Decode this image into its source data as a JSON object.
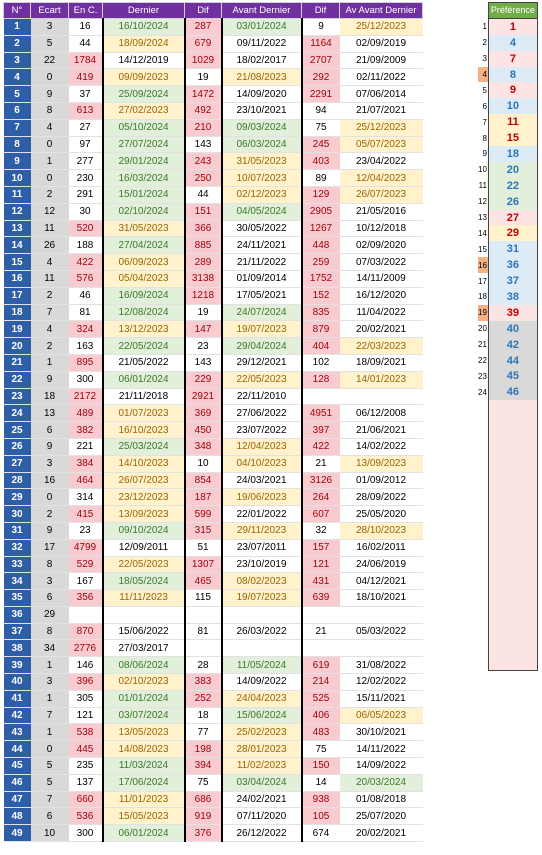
{
  "headers": [
    "N°",
    "Ecart",
    "En C.",
    "Dernier",
    "Dif",
    "Avant Dernier",
    "Dif",
    "Av Avant Dernier"
  ],
  "rows": [
    [
      "1",
      "3",
      "16",
      "16/10/2024",
      "287",
      "03/01/2024",
      "9",
      "25/12/2023"
    ],
    [
      "2",
      "5",
      "44",
      "18/09/2024",
      "679",
      "09/11/2022",
      "1164",
      "02/09/2019"
    ],
    [
      "3",
      "22",
      "1784",
      "14/12/2019",
      "1029",
      "18/02/2017",
      "2707",
      "21/09/2009"
    ],
    [
      "4",
      "0",
      "419",
      "09/09/2023",
      "19",
      "21/08/2023",
      "292",
      "02/11/2022"
    ],
    [
      "5",
      "9",
      "37",
      "25/09/2024",
      "1472",
      "14/09/2020",
      "2291",
      "07/06/2014"
    ],
    [
      "6",
      "8",
      "613",
      "27/02/2023",
      "492",
      "23/10/2021",
      "94",
      "21/07/2021"
    ],
    [
      "7",
      "4",
      "27",
      "05/10/2024",
      "210",
      "09/03/2024",
      "75",
      "25/12/2023"
    ],
    [
      "8",
      "0",
      "97",
      "27/07/2024",
      "143",
      "06/03/2024",
      "245",
      "05/07/2023"
    ],
    [
      "9",
      "1",
      "277",
      "29/01/2024",
      "243",
      "31/05/2023",
      "403",
      "23/04/2022"
    ],
    [
      "10",
      "0",
      "230",
      "16/03/2024",
      "250",
      "10/07/2023",
      "89",
      "12/04/2023"
    ],
    [
      "11",
      "2",
      "291",
      "15/01/2024",
      "44",
      "02/12/2023",
      "129",
      "26/07/2023"
    ],
    [
      "12",
      "12",
      "30",
      "02/10/2024",
      "151",
      "04/05/2024",
      "2905",
      "21/05/2016"
    ],
    [
      "13",
      "11",
      "520",
      "31/05/2023",
      "366",
      "30/05/2022",
      "1267",
      "10/12/2018"
    ],
    [
      "14",
      "26",
      "188",
      "27/04/2024",
      "885",
      "24/11/2021",
      "448",
      "02/09/2020"
    ],
    [
      "15",
      "4",
      "422",
      "06/09/2023",
      "289",
      "21/11/2022",
      "259",
      "07/03/2022"
    ],
    [
      "16",
      "11",
      "576",
      "05/04/2023",
      "3138",
      "01/09/2014",
      "1752",
      "14/11/2009"
    ],
    [
      "17",
      "2",
      "46",
      "16/09/2024",
      "1218",
      "17/05/2021",
      "152",
      "16/12/2020"
    ],
    [
      "18",
      "7",
      "81",
      "12/08/2024",
      "19",
      "24/07/2024",
      "835",
      "11/04/2022"
    ],
    [
      "19",
      "4",
      "324",
      "13/12/2023",
      "147",
      "19/07/2023",
      "879",
      "20/02/2021"
    ],
    [
      "20",
      "2",
      "163",
      "22/05/2024",
      "23",
      "29/04/2024",
      "404",
      "22/03/2023"
    ],
    [
      "21",
      "1",
      "895",
      "21/05/2022",
      "143",
      "29/12/2021",
      "102",
      "18/09/2021"
    ],
    [
      "22",
      "9",
      "300",
      "06/01/2024",
      "229",
      "22/05/2023",
      "128",
      "14/01/2023"
    ],
    [
      "23",
      "18",
      "2172",
      "21/11/2018",
      "2921",
      "22/11/2010",
      "",
      ""
    ],
    [
      "24",
      "13",
      "489",
      "01/07/2023",
      "369",
      "27/06/2022",
      "4951",
      "06/12/2008"
    ],
    [
      "25",
      "6",
      "382",
      "16/10/2023",
      "450",
      "23/07/2022",
      "397",
      "21/06/2021"
    ],
    [
      "26",
      "9",
      "221",
      "25/03/2024",
      "348",
      "12/04/2023",
      "422",
      "14/02/2022"
    ],
    [
      "27",
      "3",
      "384",
      "14/10/2023",
      "10",
      "04/10/2023",
      "21",
      "13/09/2023"
    ],
    [
      "28",
      "16",
      "464",
      "26/07/2023",
      "854",
      "24/03/2021",
      "3126",
      "01/09/2012"
    ],
    [
      "29",
      "0",
      "314",
      "23/12/2023",
      "187",
      "19/06/2023",
      "264",
      "28/09/2022"
    ],
    [
      "30",
      "2",
      "415",
      "13/09/2023",
      "599",
      "22/01/2022",
      "607",
      "25/05/2020"
    ],
    [
      "31",
      "9",
      "23",
      "09/10/2024",
      "315",
      "29/11/2023",
      "32",
      "28/10/2023"
    ],
    [
      "32",
      "17",
      "4799",
      "12/09/2011",
      "51",
      "23/07/2011",
      "157",
      "16/02/2011"
    ],
    [
      "33",
      "8",
      "529",
      "22/05/2023",
      "1307",
      "23/10/2019",
      "121",
      "24/06/2019"
    ],
    [
      "34",
      "3",
      "167",
      "18/05/2024",
      "465",
      "08/02/2023",
      "431",
      "04/12/2021"
    ],
    [
      "35",
      "6",
      "356",
      "11/11/2023",
      "115",
      "19/07/2023",
      "639",
      "18/10/2021"
    ],
    [
      "36",
      "29",
      "",
      "",
      "",
      "",
      "",
      ""
    ],
    [
      "37",
      "8",
      "870",
      "15/06/2022",
      "81",
      "26/03/2022",
      "21",
      "05/03/2022"
    ],
    [
      "38",
      "34",
      "2776",
      "27/03/2017",
      "",
      "",
      "",
      ""
    ],
    [
      "39",
      "1",
      "146",
      "08/06/2024",
      "28",
      "11/05/2024",
      "619",
      "31/08/2022"
    ],
    [
      "40",
      "3",
      "396",
      "02/10/2023",
      "383",
      "14/09/2022",
      "214",
      "12/02/2022"
    ],
    [
      "41",
      "1",
      "305",
      "01/01/2024",
      "252",
      "24/04/2023",
      "525",
      "15/11/2021"
    ],
    [
      "42",
      "7",
      "121",
      "03/07/2024",
      "18",
      "15/06/2024",
      "406",
      "06/05/2023"
    ],
    [
      "43",
      "1",
      "538",
      "13/05/2023",
      "77",
      "25/02/2023",
      "483",
      "30/10/2021"
    ],
    [
      "44",
      "0",
      "445",
      "14/08/2023",
      "198",
      "28/01/2023",
      "75",
      "14/11/2022"
    ],
    [
      "45",
      "5",
      "235",
      "11/03/2024",
      "394",
      "11/02/2023",
      "150",
      "14/09/2022"
    ],
    [
      "46",
      "5",
      "137",
      "17/06/2024",
      "75",
      "03/04/2024",
      "14",
      "20/03/2024"
    ],
    [
      "47",
      "7",
      "660",
      "11/01/2023",
      "686",
      "24/02/2021",
      "938",
      "01/08/2018"
    ],
    [
      "48",
      "6",
      "536",
      "15/05/2023",
      "919",
      "07/11/2020",
      "105",
      "25/07/2020"
    ],
    [
      "49",
      "10",
      "300",
      "06/01/2024",
      "376",
      "26/12/2022",
      "674",
      "20/02/2021"
    ]
  ],
  "row_styles": [
    "n,g,p,g,n,y",
    "n,y,p,n,p,n",
    "p,n,p,n,p,n",
    "p,y,n,y,p,n",
    "n,g,p,n,p,n",
    "p,y,p,n,n,n",
    "n,g,p,g,n,y",
    "n,g,n,g,p,y",
    "n,g,p,y,p,n",
    "n,g,p,y,n,y",
    "n,g,n,y,p,y",
    "n,g,p,g,p,n",
    "p,y,p,n,p,n",
    "n,g,p,n,p,n",
    "p,y,p,n,p,n",
    "p,y,p,n,p,n",
    "n,g,p,n,p,n",
    "n,g,n,g,p,n",
    "p,y,p,y,p,n",
    "n,g,n,g,p,y",
    "p,n,n,n,n,n",
    "n,g,p,y,p,y",
    "p,n,p,n,n,n",
    "p,y,p,n,p,n",
    "p,y,p,n,p,n",
    "n,g,p,y,p,n",
    "p,y,n,y,n,y",
    "p,y,p,n,p,n",
    "n,y,p,y,p,n",
    "p,y,p,n,p,n",
    "n,g,p,y,n,y",
    "p,n,n,n,p,n",
    "p,y,p,n,p,n",
    "n,g,p,y,p,n",
    "p,y,n,y,p,n",
    "n,n,n,n,n,n",
    "p,n,n,n,n,n",
    "p,n,n,n,n,n",
    "n,g,n,g,p,n",
    "p,y,p,n,p,n",
    "n,g,p,y,p,n",
    "n,g,n,g,p,y",
    "p,y,n,y,p,n",
    "p,y,p,y,n,n",
    "n,g,p,y,p,n",
    "n,g,n,g,n,g",
    "p,y,p,n,p,n",
    "p,y,p,n,p,n",
    "n,g,p,n,n,n"
  ],
  "preference": {
    "title": "Préférence",
    "values": [
      "1",
      "4",
      "7",
      "8",
      "9",
      "10",
      "11",
      "15",
      "18",
      "20",
      "22",
      "26",
      "27",
      "29",
      "31",
      "36",
      "37",
      "38",
      "39",
      "40",
      "42",
      "44",
      "45",
      "46"
    ],
    "styles": [
      "pr",
      "pb",
      "pr",
      "pb",
      "pr",
      "pb",
      "py",
      "py",
      "pb",
      "pg",
      "pg",
      "pg",
      "pr",
      "py",
      "pb",
      "pb",
      "pb",
      "pb",
      "pr",
      "pd",
      "pd",
      "pd",
      "pd",
      "pd"
    ],
    "side_numbers": [
      "1",
      "2",
      "3",
      "4",
      "5",
      "6",
      "7",
      "8",
      "9",
      "10",
      "11",
      "12",
      "13",
      "14",
      "15",
      "16",
      "17",
      "18",
      "19",
      "20",
      "21",
      "22",
      "23",
      "24"
    ],
    "side_highlighted": [
      4,
      16,
      19
    ]
  }
}
